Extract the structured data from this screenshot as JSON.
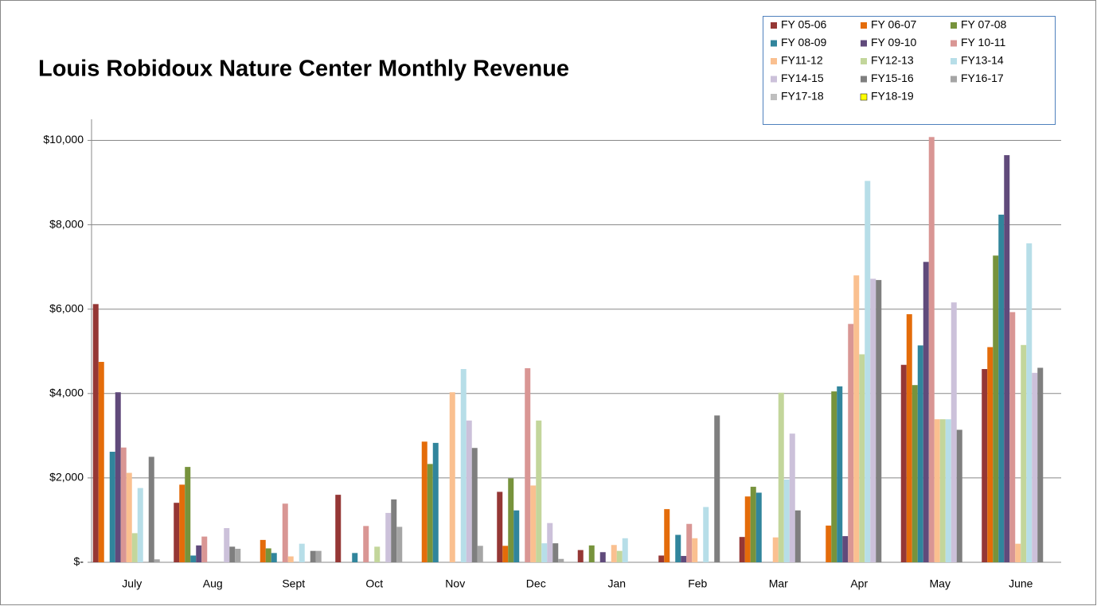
{
  "chart_data": {
    "type": "bar",
    "title": "Louis Robidoux Nature Center Monthly Revenue",
    "categories": [
      "July",
      "Aug",
      "Sept",
      "Oct",
      "Nov",
      "Dec",
      "Jan",
      "Feb",
      "Mar",
      "Apr",
      "May",
      "June"
    ],
    "series": [
      {
        "name": "FY 05-06",
        "color": "#953735",
        "values": [
          6120,
          1410,
          0,
          1600,
          0,
          1670,
          290,
          160,
          600,
          0,
          4680,
          4580
        ]
      },
      {
        "name": "FY 06-07",
        "color": "#e46c0a",
        "values": [
          4750,
          1840,
          530,
          0,
          2860,
          390,
          0,
          1260,
          1560,
          870,
          5880,
          5100
        ]
      },
      {
        "name": "FY 07-08",
        "color": "#77933c",
        "values": [
          0,
          2260,
          330,
          0,
          2330,
          1990,
          400,
          0,
          1790,
          4050,
          4200,
          7270
        ]
      },
      {
        "name": "FY 08-09",
        "color": "#31859c",
        "values": [
          2620,
          160,
          220,
          220,
          2830,
          1230,
          0,
          650,
          1650,
          4170,
          5140,
          8240
        ]
      },
      {
        "name": "FY 09-10",
        "color": "#604a7b",
        "values": [
          4030,
          400,
          0,
          0,
          0,
          0,
          240,
          150,
          0,
          620,
          7120,
          9650
        ]
      },
      {
        "name": "FY 10-11",
        "color": "#d99694",
        "values": [
          2720,
          610,
          1390,
          860,
          0,
          4600,
          0,
          910,
          0,
          5650,
          10080,
          5930
        ]
      },
      {
        "name": "FY11-12",
        "color": "#fac090",
        "values": [
          2120,
          0,
          140,
          0,
          4030,
          1820,
          410,
          570,
          590,
          6800,
          3390,
          440
        ]
      },
      {
        "name": "FY12-13",
        "color": "#c3d69b",
        "values": [
          690,
          0,
          0,
          370,
          0,
          3360,
          270,
          0,
          4020,
          4930,
          3390,
          5150
        ]
      },
      {
        "name": "FY13-14",
        "color": "#b7dee8",
        "values": [
          1760,
          0,
          440,
          0,
          4580,
          450,
          570,
          1310,
          1960,
          9040,
          3390,
          7560
        ]
      },
      {
        "name": "FY14-15",
        "color": "#ccc1da",
        "values": [
          0,
          810,
          0,
          1170,
          3360,
          930,
          0,
          0,
          3050,
          6720,
          6160,
          4490
        ]
      },
      {
        "name": "FY15-16",
        "color": "#7f7f7f",
        "values": [
          2500,
          370,
          270,
          1490,
          2710,
          450,
          0,
          3480,
          1230,
          6690,
          3140,
          4610
        ]
      },
      {
        "name": "FY16-17",
        "color": "#a5a5a5",
        "values": [
          70,
          320,
          270,
          840,
          390,
          80,
          0,
          0,
          0,
          0,
          0,
          0
        ]
      },
      {
        "name": "FY17-18",
        "color": "#bfbfbf",
        "values": [
          0,
          0,
          0,
          0,
          0,
          0,
          0,
          0,
          0,
          0,
          0,
          0
        ]
      },
      {
        "name": "FY18-19",
        "color": "#ffff00",
        "values": [
          0,
          0,
          0,
          0,
          0,
          0,
          0,
          0,
          0,
          0,
          0,
          0
        ]
      }
    ],
    "ylim": [
      0,
      10500
    ],
    "yticks": [
      {
        "value": 0,
        "label": "$-"
      },
      {
        "value": 2000,
        "label": "$2,000"
      },
      {
        "value": 4000,
        "label": "$4,000"
      },
      {
        "value": 6000,
        "label": "$6,000"
      },
      {
        "value": 8000,
        "label": "$8,000"
      },
      {
        "value": 10000,
        "label": "$10,000"
      }
    ],
    "grid": true,
    "legend": "top-right"
  }
}
